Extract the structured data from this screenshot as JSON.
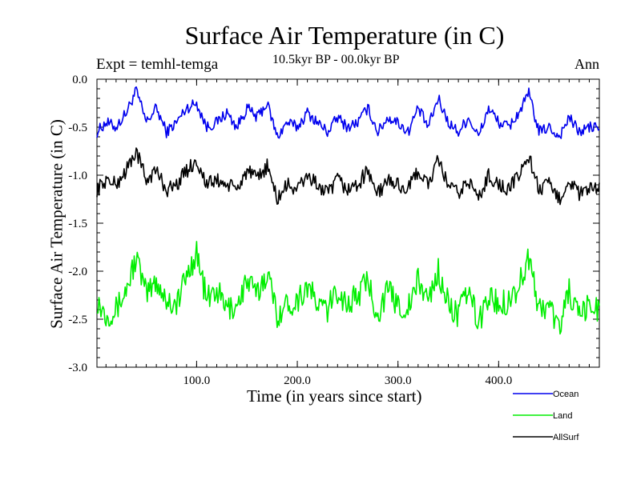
{
  "header": {
    "title": "Surface Air Temperature (in C)",
    "expt": "Expt = temhl-temga",
    "period": "10.5kyr BP - 00.0kyr BP",
    "season": "Ann"
  },
  "chart_data": {
    "type": "line",
    "title": "Surface Air Temperature (in C)",
    "xlabel": "Time (in years since start)",
    "ylabel": "Surface Air Temperature (in C)",
    "xlim": [
      1,
      500
    ],
    "ylim": [
      -3.0,
      0.0
    ],
    "x_ticks": [
      100,
      200,
      300,
      400
    ],
    "x_tick_labels": [
      "100.0",
      "200.0",
      "300.0",
      "400.0"
    ],
    "y_ticks": [
      0.0,
      -0.5,
      -1.0,
      -1.5,
      -2.0,
      -2.5,
      -3.0
    ],
    "y_tick_labels": [
      "0.0",
      "-0.5",
      "-1.0",
      "-1.5",
      "-2.0",
      "-2.5",
      "-3.0"
    ],
    "grid": false,
    "legend_position": "bottom-right",
    "x": [
      1,
      10,
      20,
      30,
      40,
      50,
      60,
      70,
      80,
      90,
      100,
      110,
      120,
      130,
      140,
      150,
      160,
      170,
      180,
      190,
      200,
      210,
      220,
      230,
      240,
      250,
      260,
      270,
      280,
      290,
      300,
      310,
      320,
      330,
      340,
      350,
      360,
      370,
      380,
      390,
      400,
      410,
      420,
      430,
      440,
      450,
      460,
      470,
      480,
      490,
      500
    ],
    "series": [
      {
        "name": "Ocean",
        "color": "#0000ee",
        "values": [
          -0.55,
          -0.45,
          -0.5,
          -0.35,
          -0.12,
          -0.45,
          -0.3,
          -0.55,
          -0.45,
          -0.3,
          -0.25,
          -0.5,
          -0.45,
          -0.35,
          -0.5,
          -0.3,
          -0.4,
          -0.25,
          -0.6,
          -0.45,
          -0.5,
          -0.35,
          -0.45,
          -0.55,
          -0.4,
          -0.5,
          -0.45,
          -0.3,
          -0.55,
          -0.4,
          -0.45,
          -0.55,
          -0.3,
          -0.5,
          -0.2,
          -0.45,
          -0.55,
          -0.4,
          -0.6,
          -0.3,
          -0.45,
          -0.5,
          -0.35,
          -0.15,
          -0.55,
          -0.5,
          -0.6,
          -0.4,
          -0.55,
          -0.5,
          -0.5
        ]
      },
      {
        "name": "Land",
        "color": "#00ee00",
        "values": [
          -2.3,
          -2.45,
          -2.4,
          -2.2,
          -1.85,
          -2.25,
          -2.1,
          -2.3,
          -2.35,
          -2.05,
          -1.8,
          -2.3,
          -2.2,
          -2.4,
          -2.35,
          -2.1,
          -2.25,
          -2.0,
          -2.45,
          -2.35,
          -2.3,
          -2.15,
          -2.35,
          -2.4,
          -2.2,
          -2.35,
          -2.25,
          -2.1,
          -2.45,
          -2.2,
          -2.35,
          -2.4,
          -2.1,
          -2.3,
          -2.0,
          -2.35,
          -2.45,
          -2.2,
          -2.55,
          -2.25,
          -2.35,
          -2.3,
          -2.15,
          -1.85,
          -2.4,
          -2.35,
          -2.6,
          -2.2,
          -2.5,
          -2.35,
          -2.4
        ]
      },
      {
        "name": "AllSurf",
        "color": "#000000",
        "values": [
          -1.15,
          -1.05,
          -1.1,
          -0.95,
          -0.75,
          -1.05,
          -0.95,
          -1.15,
          -1.1,
          -0.95,
          -0.85,
          -1.1,
          -1.05,
          -1.1,
          -1.15,
          -0.95,
          -1.05,
          -0.9,
          -1.25,
          -1.1,
          -1.15,
          -1.0,
          -1.1,
          -1.2,
          -1.05,
          -1.15,
          -1.1,
          -0.95,
          -1.2,
          -1.05,
          -1.1,
          -1.15,
          -0.95,
          -1.1,
          -0.85,
          -1.1,
          -1.2,
          -1.05,
          -1.25,
          -1.0,
          -1.1,
          -1.15,
          -1.0,
          -0.8,
          -1.15,
          -1.1,
          -1.25,
          -1.05,
          -1.2,
          -1.15,
          -1.15
        ]
      }
    ]
  }
}
